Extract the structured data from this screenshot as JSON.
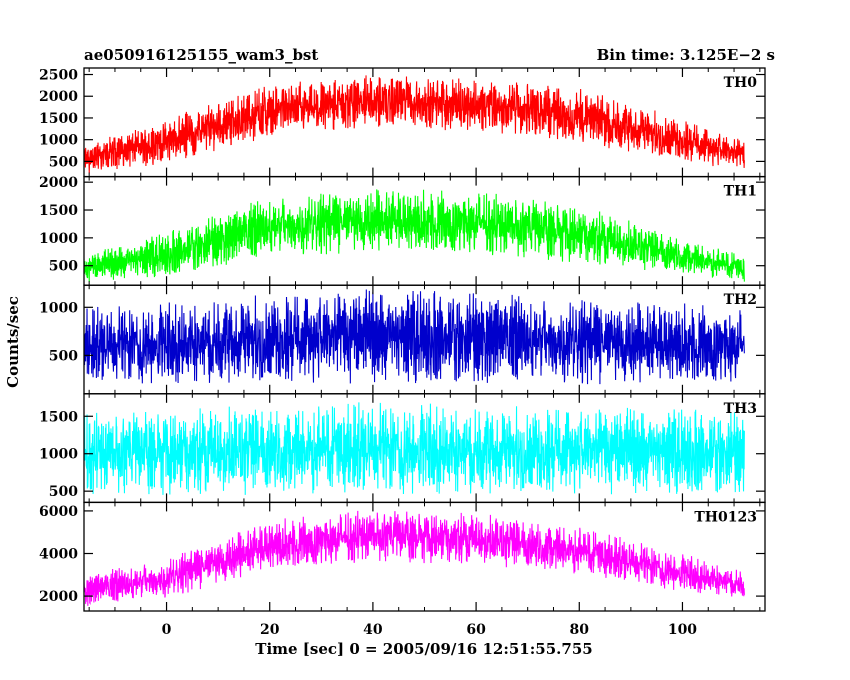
{
  "header": {
    "title": "ae050916125155_wam3_bst",
    "bin_time": "Bin time: 3.125E−2 s"
  },
  "chart_data": {
    "type": "line",
    "title": "ae050916125155_wam3_bst",
    "subtitle": "Bin time: 3.125E−2 s",
    "xlabel": "Time [sec] 0 = 2005/09/16 12:51:55.755",
    "ylabel": "Counts/sec",
    "xlim": [
      -16,
      116
    ],
    "x_ticks": [
      0,
      20,
      40,
      60,
      80,
      100
    ],
    "x_range_data": [
      -16,
      112
    ],
    "grid": false,
    "panels": [
      {
        "name": "TH0",
        "color": "#ff0000",
        "ylim": [
          150,
          2650
        ],
        "y_ticks": [
          500,
          1000,
          1500,
          2000,
          2500
        ],
        "x": [
          -16,
          0,
          20,
          40,
          60,
          80,
          100,
          112
        ],
        "low": [
          200,
          450,
          1050,
          1250,
          1200,
          900,
          500,
          250
        ],
        "high": [
          900,
          1500,
          2300,
          2500,
          2400,
          2200,
          1500,
          1000
        ]
      },
      {
        "name": "TH1",
        "color": "#00ff00",
        "ylim": [
          150,
          2100
        ],
        "y_ticks": [
          500,
          1000,
          1500,
          2000
        ],
        "x": [
          -16,
          0,
          20,
          40,
          60,
          80,
          100,
          112
        ],
        "low": [
          200,
          300,
          650,
          750,
          700,
          550,
          350,
          200
        ],
        "high": [
          700,
          1100,
          1750,
          1900,
          1850,
          1600,
          1000,
          700
        ]
      },
      {
        "name": "TH2",
        "color": "#0000cc",
        "ylim": [
          100,
          1230
        ],
        "y_ticks": [
          500,
          1000
        ],
        "x": [
          -16,
          0,
          20,
          40,
          60,
          80,
          100,
          112
        ],
        "low": [
          200,
          200,
          200,
          200,
          200,
          200,
          200,
          200
        ],
        "high": [
          1000,
          1050,
          1150,
          1200,
          1150,
          1100,
          1050,
          1000
        ]
      },
      {
        "name": "TH3",
        "color": "#00ffff",
        "ylim": [
          350,
          1800
        ],
        "y_ticks": [
          500,
          1000,
          1500
        ],
        "x": [
          -16,
          0,
          20,
          40,
          60,
          80,
          100,
          112
        ],
        "low": [
          450,
          450,
          450,
          450,
          450,
          450,
          450,
          450
        ],
        "high": [
          1550,
          1600,
          1650,
          1700,
          1650,
          1650,
          1600,
          1550
        ]
      },
      {
        "name": "TH0123",
        "color": "#ff00ff",
        "ylim": [
          1300,
          6400
        ],
        "y_ticks": [
          2000,
          4000,
          6000
        ],
        "x": [
          -16,
          0,
          20,
          40,
          60,
          80,
          100,
          112
        ],
        "low": [
          1500,
          1900,
          3200,
          3600,
          3500,
          3000,
          2200,
          1900
        ],
        "high": [
          3000,
          3800,
          5600,
          6100,
          5900,
          5300,
          4000,
          3200
        ]
      }
    ]
  }
}
